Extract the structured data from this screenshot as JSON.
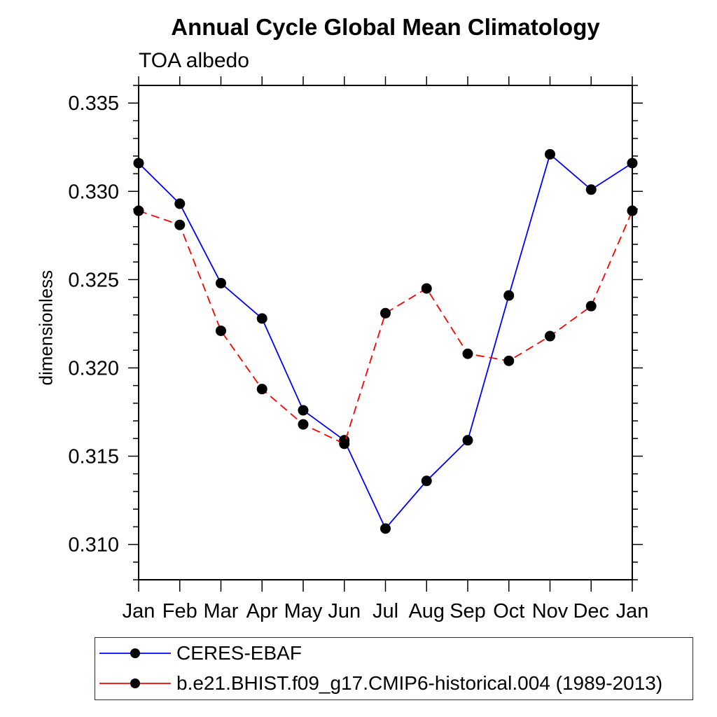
{
  "chart_data": {
    "type": "line",
    "title": "Annual Cycle Global Mean Climatology",
    "subtitle": "TOA albedo",
    "ylabel": "dimensionless",
    "xlabel": "",
    "categories": [
      "Jan",
      "Feb",
      "Mar",
      "Apr",
      "May",
      "Jun",
      "Jul",
      "Aug",
      "Sep",
      "Oct",
      "Nov",
      "Dec",
      "Jan"
    ],
    "ylim": [
      0.308,
      0.336
    ],
    "ytick_labels": [
      "0.310",
      "0.315",
      "0.320",
      "0.325",
      "0.330",
      "0.335"
    ],
    "ytick_values": [
      0.31,
      0.315,
      0.32,
      0.325,
      0.33,
      0.335
    ],
    "ytick_minor_step": 0.001,
    "grid": false,
    "legend_position": "bottom",
    "marker": "filled-circle",
    "marker_color": "#000000",
    "axis_color": "#000000",
    "series": [
      {
        "name": "CERES-EBAF",
        "color": "#0000ff",
        "dash": "solid",
        "values": [
          0.3316,
          0.3293,
          0.3248,
          0.3228,
          0.3176,
          0.3159,
          0.3109,
          0.3136,
          0.3159,
          0.3241,
          0.3321,
          0.3301,
          0.3316
        ]
      },
      {
        "name": "b.e21.BHIST.f09_g17.CMIP6-historical.004 (1989-2013)",
        "color": "#ff0000",
        "dash": "dashed",
        "values": [
          0.3289,
          0.3281,
          0.3221,
          0.3188,
          0.3168,
          0.3157,
          0.3231,
          0.3245,
          0.3208,
          0.3204,
          0.3218,
          0.3235,
          0.3289
        ]
      }
    ]
  }
}
